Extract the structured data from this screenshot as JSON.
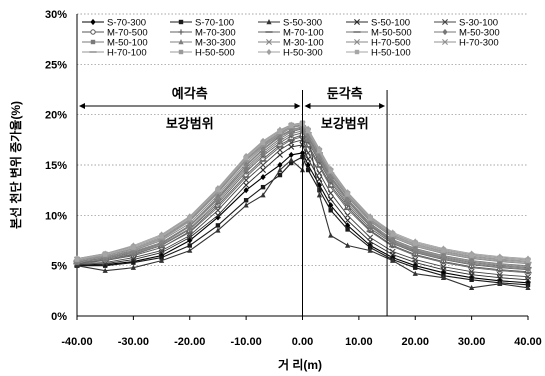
{
  "chart_data": {
    "type": "line",
    "title": "",
    "xlabel": "거 리(m)",
    "ylabel": "본선 천단 변위 증가율(%)",
    "xlim": [
      -40,
      40
    ],
    "ylim": [
      0,
      30
    ],
    "x_ticks": [
      "-40.00",
      "-30.00",
      "-20.00",
      "-10.00",
      "0.00",
      "10.00",
      "20.00",
      "30.00",
      "40.00"
    ],
    "y_ticks": [
      "0%",
      "5%",
      "10%",
      "15%",
      "20%",
      "25%",
      "30%"
    ],
    "grid": true,
    "legend_position": "top",
    "annotations": {
      "left_region_top": "예각측",
      "left_region_bottom": "보강범위",
      "right_region_top": "둔각측",
      "right_region_bottom": "보강범위",
      "left_arrow_range": [
        -40,
        0
      ],
      "right_arrow_range": [
        0,
        15
      ]
    },
    "x": [
      -40,
      -35,
      -30,
      -25,
      -20,
      -15,
      -10,
      -7,
      -4,
      -2,
      0,
      1,
      3,
      5,
      8,
      12,
      16,
      20,
      25,
      30,
      35,
      40
    ],
    "series": [
      {
        "name": "S-70-300",
        "marker": "diamond",
        "values": [
          5.0,
          5.1,
          5.4,
          6.0,
          7.5,
          9.8,
          12.5,
          13.8,
          15.0,
          16.0,
          16.2,
          15.0,
          13.0,
          11.0,
          9.0,
          7.0,
          5.8,
          5.0,
          4.3,
          3.8,
          3.5,
          3.3
        ]
      },
      {
        "name": "S-70-100",
        "marker": "square",
        "values": [
          5.0,
          5.0,
          5.3,
          5.8,
          7.0,
          9.0,
          11.5,
          12.8,
          14.0,
          15.2,
          15.8,
          14.5,
          12.5,
          10.5,
          8.6,
          6.8,
          5.6,
          4.8,
          4.0,
          3.6,
          3.3,
          3.1
        ]
      },
      {
        "name": "S-50-300",
        "marker": "triangle",
        "values": [
          5.0,
          4.5,
          4.8,
          5.5,
          6.5,
          8.5,
          11.0,
          12.0,
          14.5,
          15.5,
          14.5,
          18.0,
          12.0,
          8.0,
          7.0,
          6.5,
          5.5,
          4.2,
          3.8,
          2.8,
          3.2,
          2.8
        ]
      },
      {
        "name": "S-50-100",
        "marker": "x",
        "values": [
          5.1,
          5.2,
          5.6,
          6.3,
          7.8,
          10.0,
          13.0,
          14.5,
          16.0,
          16.8,
          17.0,
          15.6,
          13.6,
          11.6,
          9.5,
          7.4,
          6.1,
          5.3,
          4.6,
          4.1,
          3.8,
          3.6
        ]
      },
      {
        "name": "S-30-100",
        "marker": "x",
        "values": [
          5.2,
          5.3,
          5.8,
          6.5,
          8.0,
          10.5,
          13.5,
          15.0,
          16.5,
          17.2,
          17.5,
          16.2,
          14.2,
          12.2,
          10.0,
          7.8,
          6.4,
          5.6,
          4.9,
          4.4,
          4.1,
          3.9
        ]
      },
      {
        "name": "M-70-500",
        "marker": "circle",
        "values": [
          5.3,
          5.5,
          6.0,
          6.8,
          8.4,
          11.0,
          14.0,
          15.6,
          17.0,
          17.6,
          18.0,
          17.0,
          15.0,
          13.0,
          10.8,
          8.5,
          7.0,
          6.1,
          5.4,
          4.9,
          4.6,
          4.4
        ]
      },
      {
        "name": "M-70-300",
        "marker": "plus",
        "values": [
          5.3,
          5.6,
          6.1,
          7.0,
          8.6,
          11.2,
          14.3,
          15.9,
          17.2,
          17.9,
          18.2,
          17.3,
          15.3,
          13.3,
          11.0,
          8.7,
          7.2,
          6.3,
          5.6,
          5.1,
          4.8,
          4.6
        ]
      },
      {
        "name": "M-70-100",
        "marker": "dash",
        "values": [
          5.2,
          5.5,
          6.0,
          6.8,
          8.3,
          10.8,
          13.8,
          15.4,
          16.8,
          17.5,
          17.8,
          16.8,
          14.8,
          12.8,
          10.6,
          8.4,
          6.9,
          6.0,
          5.3,
          4.8,
          4.5,
          4.3
        ]
      },
      {
        "name": "M-50-500",
        "marker": "dash",
        "values": [
          5.4,
          5.7,
          6.3,
          7.2,
          8.9,
          11.6,
          14.7,
          16.3,
          17.6,
          18.3,
          18.6,
          17.7,
          15.7,
          13.7,
          11.4,
          9.0,
          7.4,
          6.5,
          5.8,
          5.3,
          5.0,
          4.8
        ]
      },
      {
        "name": "M-50-300",
        "marker": "diamond",
        "values": [
          5.4,
          5.8,
          6.4,
          7.3,
          9.0,
          11.8,
          15.0,
          16.6,
          17.9,
          18.5,
          18.8,
          17.9,
          15.9,
          13.9,
          11.6,
          9.2,
          7.6,
          6.7,
          6.0,
          5.5,
          5.2,
          5.0
        ]
      },
      {
        "name": "M-50-100",
        "marker": "square",
        "values": [
          5.3,
          5.6,
          6.2,
          7.1,
          8.7,
          11.4,
          14.5,
          16.1,
          17.4,
          18.1,
          18.4,
          17.5,
          15.5,
          13.5,
          11.2,
          8.9,
          7.3,
          6.4,
          5.7,
          5.2,
          4.9,
          4.7
        ]
      },
      {
        "name": "M-30-300",
        "marker": "triangle",
        "values": [
          5.5,
          5.9,
          6.5,
          7.5,
          9.2,
          12.0,
          15.2,
          16.8,
          18.0,
          18.7,
          19.0,
          18.1,
          16.1,
          14.1,
          11.8,
          9.4,
          7.8,
          6.9,
          6.2,
          5.7,
          5.4,
          5.2
        ]
      },
      {
        "name": "M-30-100",
        "marker": "x",
        "values": [
          5.4,
          5.8,
          6.4,
          7.3,
          9.0,
          11.7,
          14.9,
          16.5,
          17.8,
          18.4,
          18.7,
          17.8,
          15.8,
          13.8,
          11.5,
          9.1,
          7.5,
          6.6,
          5.9,
          5.4,
          5.1,
          4.9
        ]
      },
      {
        "name": "H-70-500",
        "marker": "x",
        "values": [
          5.6,
          6.0,
          6.7,
          7.7,
          9.5,
          12.3,
          15.5,
          17.0,
          18.2,
          18.8,
          19.0,
          18.3,
          16.3,
          14.3,
          12.0,
          9.6,
          8.0,
          7.1,
          6.4,
          5.9,
          5.6,
          5.4
        ]
      },
      {
        "name": "H-70-300",
        "marker": "x",
        "values": [
          5.6,
          6.1,
          6.8,
          7.8,
          9.6,
          12.4,
          15.6,
          17.1,
          18.3,
          18.9,
          19.1,
          18.4,
          16.4,
          14.4,
          12.1,
          9.7,
          8.1,
          7.2,
          6.5,
          6.0,
          5.7,
          5.5
        ]
      },
      {
        "name": "H-70-100",
        "marker": "dash",
        "values": [
          5.5,
          6.0,
          6.6,
          7.6,
          9.4,
          12.2,
          15.4,
          16.9,
          18.1,
          18.7,
          18.9,
          18.2,
          16.2,
          14.2,
          11.9,
          9.5,
          7.9,
          7.0,
          6.3,
          5.8,
          5.5,
          5.3
        ]
      },
      {
        "name": "H-50-500",
        "marker": "square",
        "values": [
          5.7,
          6.2,
          6.9,
          8.0,
          9.8,
          12.6,
          15.8,
          17.3,
          18.4,
          19.0,
          19.2,
          18.5,
          16.5,
          14.5,
          12.2,
          9.8,
          8.2,
          7.3,
          6.6,
          6.1,
          5.8,
          5.6
        ]
      },
      {
        "name": "H-50-300",
        "marker": "diamond",
        "values": [
          5.7,
          6.2,
          7.0,
          8.1,
          9.9,
          12.7,
          15.9,
          17.4,
          18.5,
          19.0,
          19.2,
          18.6,
          16.6,
          14.6,
          12.3,
          9.9,
          8.3,
          7.4,
          6.7,
          6.2,
          5.9,
          5.7
        ]
      },
      {
        "name": "H-50-100",
        "marker": "square",
        "values": [
          5.6,
          6.1,
          6.8,
          7.9,
          9.7,
          12.5,
          15.7,
          17.2,
          18.3,
          18.9,
          19.1,
          18.4,
          16.4,
          14.4,
          12.1,
          9.7,
          8.1,
          7.2,
          6.5,
          6.0,
          5.7,
          5.5
        ]
      }
    ]
  }
}
